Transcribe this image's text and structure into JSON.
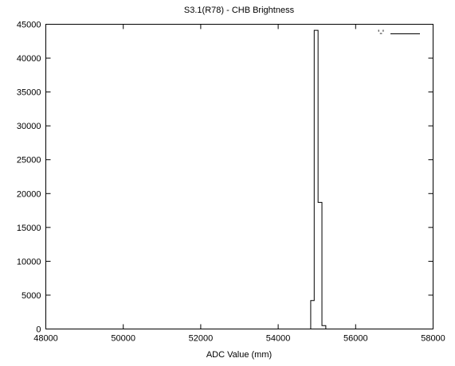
{
  "chart_data": {
    "type": "line",
    "style": "histogram-steps",
    "title": "S3.1(R78) - CHB Brightness",
    "xlabel": "ADC Value (mm)",
    "ylabel": "",
    "xlim": [
      48000,
      58000
    ],
    "ylim": [
      0,
      45000
    ],
    "x_ticks": [
      48000,
      50000,
      52000,
      54000,
      56000,
      58000
    ],
    "y_ticks": [
      0,
      5000,
      10000,
      15000,
      20000,
      25000,
      30000,
      35000,
      40000,
      45000
    ],
    "grid": false,
    "legend": {
      "position": "top-right"
    },
    "series": [
      {
        "name": "'-'",
        "color": "#000000",
        "steps": [
          {
            "x0": 54840,
            "x1": 54930,
            "y": 4200
          },
          {
            "x0": 54930,
            "x1": 55030,
            "y": 44100
          },
          {
            "x0": 55030,
            "x1": 55130,
            "y": 18700
          },
          {
            "x0": 55130,
            "x1": 55230,
            "y": 500
          }
        ]
      }
    ]
  }
}
